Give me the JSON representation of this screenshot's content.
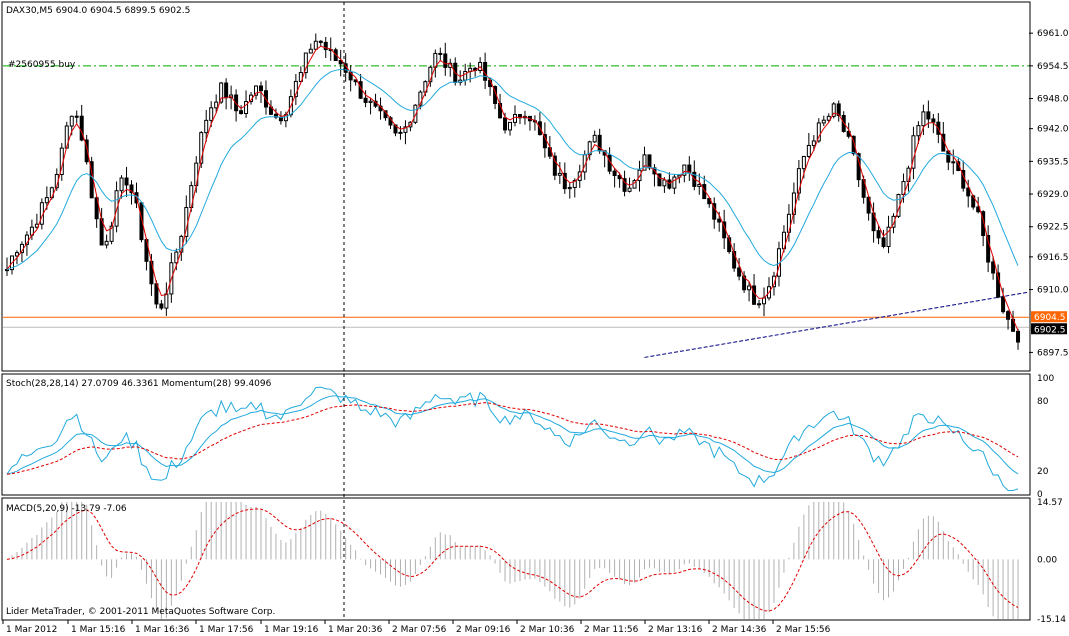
{
  "main": {
    "header": "DAX30,M5  6904.0 6904.5 6899.5 6902.5",
    "order_label": "#2560955 buy",
    "ylim": [
      6894,
      6967
    ],
    "y_ticks": [
      "6961.0",
      "6954.5",
      "6948.0",
      "6942.0",
      "6935.5",
      "6929.0",
      "6922.5",
      "6916.5",
      "6910.0",
      "6897.5"
    ],
    "y_tick_values": [
      6961.0,
      6954.5,
      6948.0,
      6942.0,
      6935.5,
      6929.0,
      6922.5,
      6916.5,
      6910.0,
      6897.5
    ],
    "hline_buy": 6954.5,
    "hline_price": 6904.5,
    "price_ask_label": "6904.5",
    "price_bid_label": "6902.5",
    "price_bid": 6902.5,
    "colors": {
      "candles": "#000000",
      "ema_fast": "#e00000",
      "ema_slow": "#22aadd",
      "buy_line": "#00aa00",
      "price_line": "#ff6600",
      "trend": "#000080"
    }
  },
  "stoch": {
    "header": "Stoch(28,28,14) 27.0709 46.3361  Momentum(28) 99.4096",
    "ylim": [
      0,
      100
    ],
    "ticks": [
      "100",
      "80",
      "20",
      "0"
    ],
    "tick_values": [
      100,
      80,
      20,
      0
    ]
  },
  "macd": {
    "header": "MACD(5,20,9) -13.79 -7.06",
    "ylim": [
      -15.14,
      14.57
    ],
    "ticks": [
      "14.57",
      "0.00",
      "-15.14"
    ],
    "tick_values": [
      14.57,
      0.0,
      -15.14
    ],
    "footer": "Lider MetaTrader, © 2001-2011 MetaQuotes Software Corp."
  },
  "x_labels": [
    "1 Mar 2012",
    "1 Mar 15:16",
    "1 Mar 16:36",
    "1 Mar 17:56",
    "1 Mar 19:16",
    "1 Mar 20:36",
    "2 Mar 07:56",
    "2 Mar 09:16",
    "2 Mar 10:36",
    "2 Mar 11:56",
    "2 Mar 13:16",
    "2 Mar 14:36",
    "2 Mar 15:56"
  ],
  "chart_data": {
    "type": "line",
    "title": "DAX30,M5",
    "x_count": 204,
    "series": [
      {
        "values": [
          6914,
          6918,
          6920,
          6922,
          6925,
          6928,
          6932,
          6938,
          6946,
          6944,
          6935,
          6926,
          6918,
          6923,
          6930,
          6932,
          6928,
          6920,
          6912,
          6905,
          6910,
          6916,
          6922,
          6930,
          6938,
          6944,
          6948,
          6950,
          6948,
          6945,
          6947,
          6950,
          6949,
          6946,
          6944,
          6946,
          6950,
          6953,
          6958,
          6960,
          6958,
          6956,
          6955,
          6953,
          6950,
          6948,
          6946,
          6944,
          6942,
          6940,
          6942,
          6946,
          6950,
          6954,
          6957,
          6955,
          6953,
          6952,
          6954,
          6955,
          6952,
          6948,
          6944,
          6942,
          6944,
          6946,
          6944,
          6940,
          6936,
          6933,
          6931,
          6932,
          6935,
          6938,
          6940,
          6937,
          6934,
          6932,
          6930,
          6933,
          6936,
          6935,
          6932,
          6931,
          6933,
          6935,
          6933,
          6930,
          6927,
          6924,
          6920,
          6916,
          6913,
          6910,
          6908,
          6909,
          6912,
          6918,
          6924,
          6930,
          6936,
          6940,
          6942,
          6944,
          6946,
          6942,
          6938,
          6932,
          6926,
          6920,
          6918,
          6922,
          6928,
          6934,
          6940,
          6945,
          6944,
          6940,
          6936,
          6934,
          6932,
          6928,
          6924,
          6918,
          6912,
          6907,
          6903,
          6901
        ]
      }
    ]
  }
}
